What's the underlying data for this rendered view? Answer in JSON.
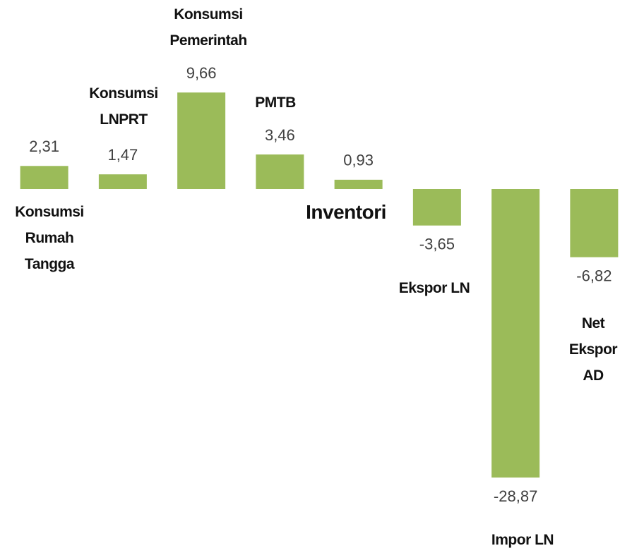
{
  "chart_data": {
    "type": "bar",
    "categories": [
      "Konsumsi\nRumah\nTangga",
      "Konsumsi\nLNPRT",
      "Konsumsi\nPemerintah",
      "PMTB",
      "Inventori",
      "Ekspor LN",
      "Impor LN",
      "Net Ekspor\nAD"
    ],
    "values": [
      2.31,
      1.47,
      9.66,
      3.46,
      0.93,
      -3.65,
      -28.87,
      -6.82
    ],
    "value_labels": [
      "2,31",
      "1,47",
      "9,66",
      "3,46",
      "0,93",
      "-3,65",
      "-28,87",
      "-6,82"
    ],
    "color": "#9bbb59",
    "ylim": [
      -30,
      12
    ]
  }
}
